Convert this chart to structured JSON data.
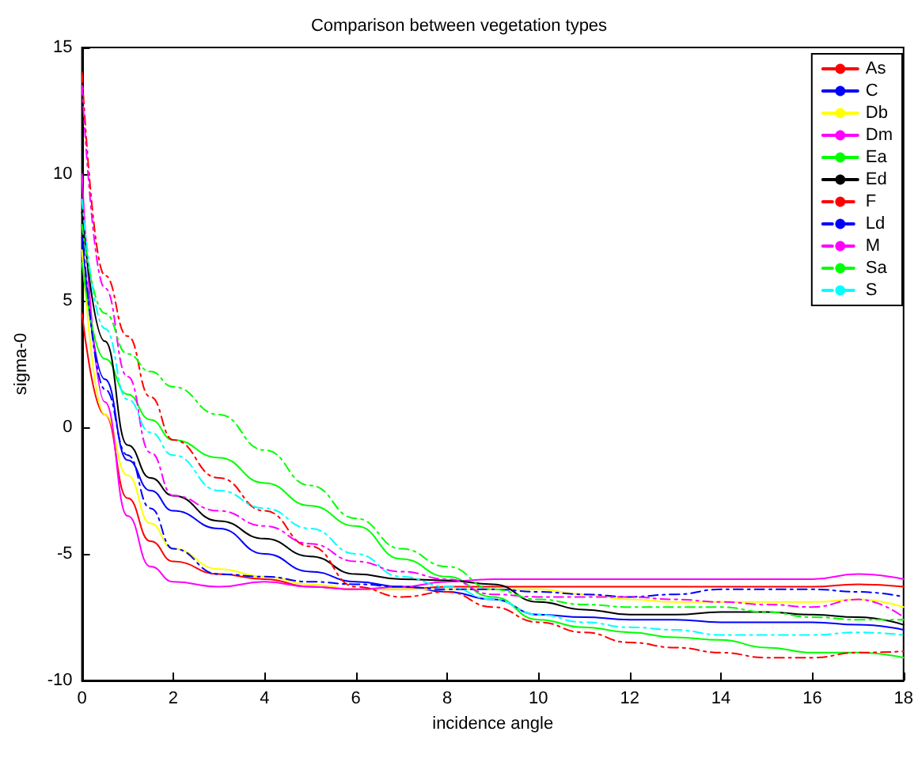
{
  "chart_data": {
    "type": "line",
    "title": "Comparison between vegetation types",
    "xlabel": "incidence angle",
    "ylabel": "sigma-0",
    "x": [
      0,
      0.5,
      1,
      1.5,
      2,
      3,
      4,
      5,
      6,
      7,
      8,
      9,
      10,
      11,
      12,
      13,
      14,
      15,
      16,
      17,
      18
    ],
    "xlim": [
      0,
      18
    ],
    "xticks": [
      0,
      2,
      4,
      6,
      8,
      10,
      12,
      14,
      16,
      18
    ],
    "ylim": [
      -10,
      15
    ],
    "yticks": [
      -10,
      -5,
      0,
      5,
      10,
      15
    ],
    "grid": false,
    "legend": "top right",
    "marker": "none",
    "series": [
      {
        "name": "As",
        "color": "#ff0000",
        "line_style": "solid",
        "values": [
          4.5,
          0.5,
          -2.8,
          -4.5,
          -5.3,
          -5.8,
          -6.0,
          -6.3,
          -6.4,
          -6.4,
          -6.3,
          -6.3,
          -6.3,
          -6.3,
          -6.3,
          -6.3,
          -6.3,
          -6.3,
          -6.3,
          -6.2,
          -6.3
        ]
      },
      {
        "name": "C",
        "color": "#0000ff",
        "line_style": "solid",
        "values": [
          7.5,
          1.9,
          -1.3,
          -2.5,
          -3.3,
          -4.0,
          -5.0,
          -5.7,
          -6.1,
          -6.3,
          -6.5,
          -6.8,
          -7.4,
          -7.5,
          -7.6,
          -7.6,
          -7.7,
          -7.7,
          -7.7,
          -7.8,
          -8.0
        ]
      },
      {
        "name": "Db",
        "color": "#ffff00",
        "line_style": "solid",
        "values": [
          7,
          0.5,
          -1.9,
          -3.8,
          -4.8,
          -5.6,
          -5.9,
          -6.2,
          -6.4,
          -6.4,
          -6.4,
          -6.4,
          -6.4,
          -6.6,
          -6.8,
          -6.9,
          -6.9,
          -6.9,
          -6.9,
          -6.8,
          -7.1
        ]
      },
      {
        "name": "Dm",
        "color": "#ff00ff",
        "line_style": "solid",
        "values": [
          10,
          1,
          -3.5,
          -5.5,
          -6.1,
          -6.3,
          -6.1,
          -6.3,
          -6.4,
          -6.3,
          -6.1,
          -6.0,
          -6.0,
          -6.0,
          -6.0,
          -6.0,
          -6.0,
          -6.0,
          -6.0,
          -5.8,
          -6.0
        ]
      },
      {
        "name": "Ea",
        "color": "#00ff00",
        "line_style": "solid",
        "values": [
          6.5,
          2.7,
          1.3,
          0.3,
          -0.5,
          -1.2,
          -2.2,
          -3.1,
          -3.9,
          -5.2,
          -5.9,
          -6.7,
          -7.6,
          -7.9,
          -8.1,
          -8.3,
          -8.4,
          -8.7,
          -8.9,
          -8.9,
          -9.1
        ]
      },
      {
        "name": "Ed",
        "color": "#000000",
        "line_style": "solid",
        "values": [
          8.5,
          3.4,
          -0.7,
          -2.0,
          -2.7,
          -3.7,
          -4.4,
          -5.1,
          -5.8,
          -6.0,
          -6.05,
          -6.2,
          -6.9,
          -7.2,
          -7.4,
          -7.4,
          -7.3,
          -7.3,
          -7.4,
          -7.5,
          -7.8
        ]
      },
      {
        "name": "F",
        "color": "#ff0000",
        "line_style": "dashed",
        "values": [
          14,
          6,
          3.6,
          1.2,
          -0.5,
          -2.0,
          -3.3,
          -4.7,
          -6.3,
          -6.7,
          -6.5,
          -7.1,
          -7.7,
          -8.1,
          -8.5,
          -8.7,
          -8.9,
          -9.1,
          -9.1,
          -8.9,
          -8.85
        ]
      },
      {
        "name": "Ld",
        "color": "#0000ff",
        "line_style": "dashed",
        "values": [
          8,
          1.5,
          -1.1,
          -3.2,
          -4.8,
          -5.8,
          -5.9,
          -6.1,
          -6.2,
          -6.3,
          -6.4,
          -6.4,
          -6.5,
          -6.6,
          -6.7,
          -6.6,
          -6.4,
          -6.4,
          -6.4,
          -6.5,
          -6.7
        ]
      },
      {
        "name": "M",
        "color": "#ff00ff",
        "line_style": "dashed",
        "values": [
          13.5,
          5.5,
          2,
          -1.0,
          -2.7,
          -3.3,
          -3.9,
          -4.6,
          -5.3,
          -5.7,
          -6.0,
          -6.6,
          -6.7,
          -6.7,
          -6.7,
          -6.8,
          -6.9,
          -7.0,
          -7.1,
          -6.8,
          -7.5
        ]
      },
      {
        "name": "Sa",
        "color": "#00ff00",
        "line_style": "dashed",
        "values": [
          8,
          4.5,
          2.9,
          2.2,
          1.6,
          0.5,
          -0.9,
          -2.3,
          -3.6,
          -4.8,
          -5.5,
          -6.4,
          -6.8,
          -7.0,
          -7.1,
          -7.1,
          -7.1,
          -7.3,
          -7.5,
          -7.6,
          -7.6
        ]
      },
      {
        "name": "S",
        "color": "#00ffff",
        "line_style": "dashed",
        "values": [
          9,
          3.9,
          1.1,
          -0.2,
          -1.1,
          -2.5,
          -3.2,
          -4.0,
          -5.0,
          -5.9,
          -6.3,
          -6.8,
          -7.4,
          -7.7,
          -7.9,
          -8.0,
          -8.2,
          -8.2,
          -8.2,
          -8.1,
          -8.2
        ]
      }
    ]
  }
}
